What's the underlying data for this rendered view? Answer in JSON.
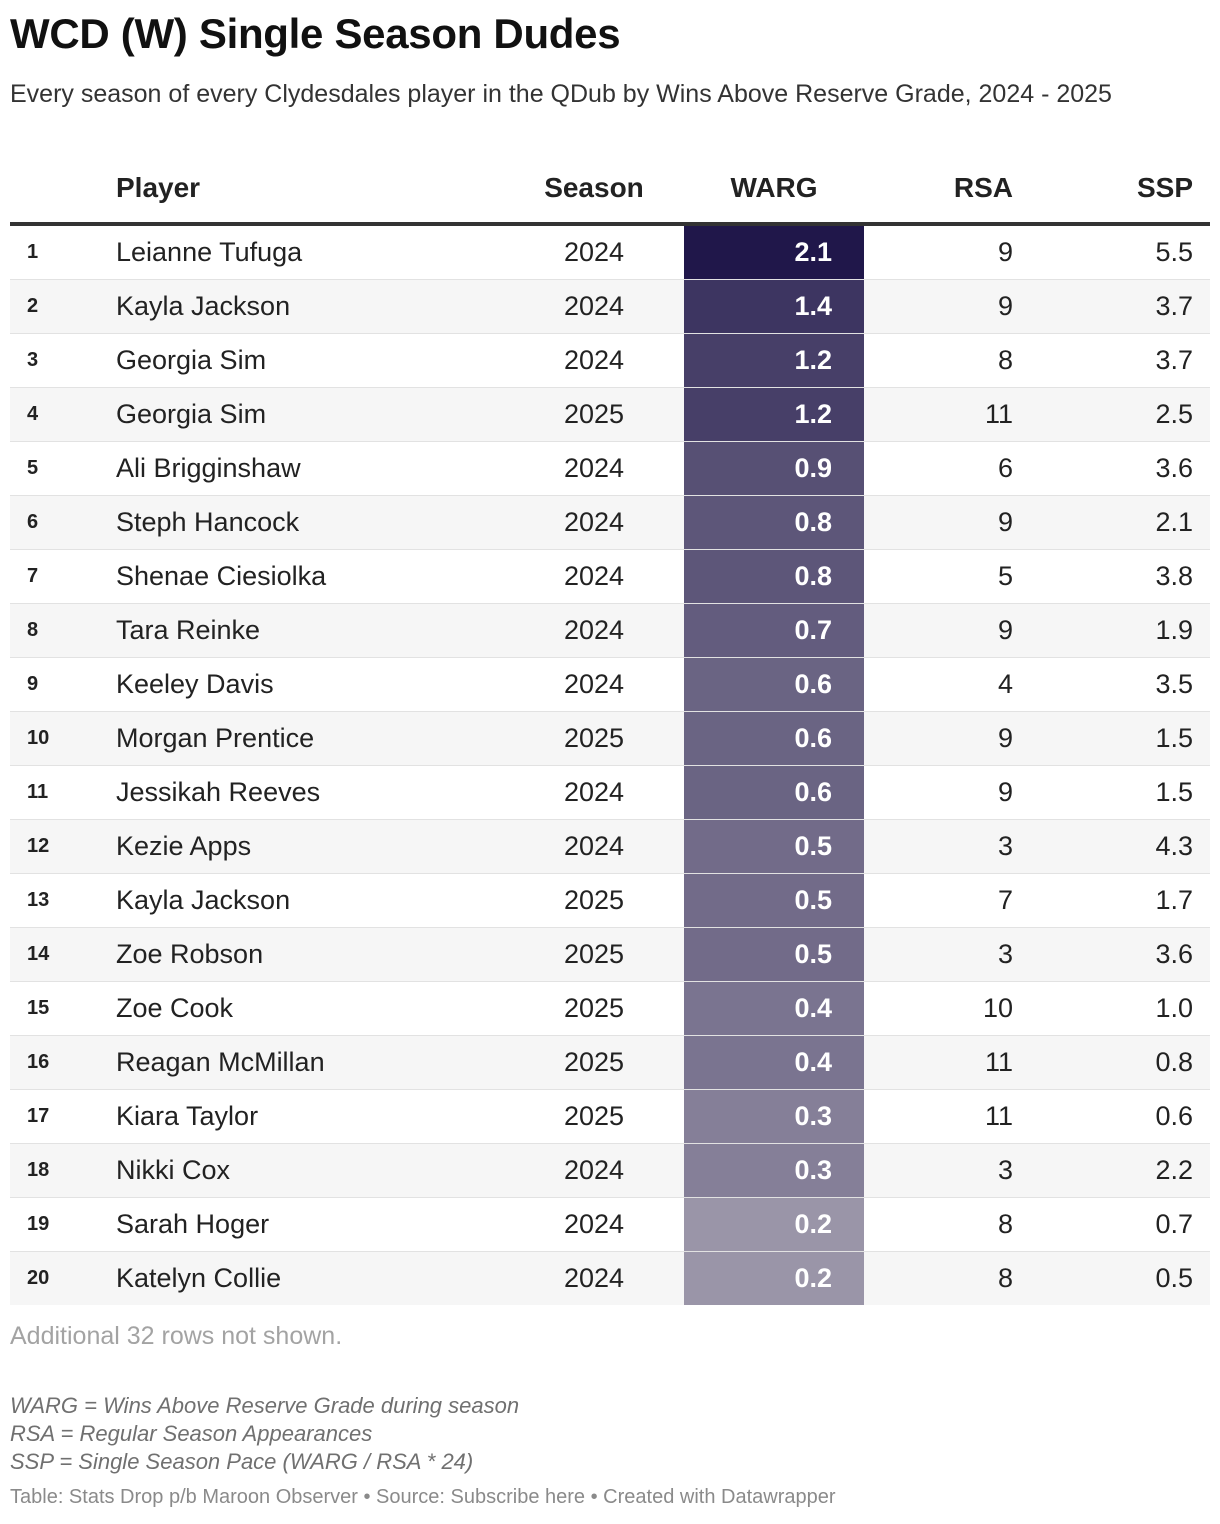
{
  "title": "WCD (W) Single Season Dudes",
  "subtitle": "Every season of every Clydesdales player in the QDub by Wins Above Reserve Grade, 2024 - 2025",
  "headers": {
    "rank": "",
    "player": "Player",
    "season": "Season",
    "warg": "WARG",
    "rsa": "RSA",
    "ssp": "SSP"
  },
  "colors": {
    "warg_max": "#20174a",
    "warg_min": "#9a95a8",
    "row_alt": "#f6f6f6",
    "header_rule": "#333333"
  },
  "chart_data": {
    "type": "table",
    "columns": [
      "",
      "Player",
      "Season",
      "WARG",
      "RSA",
      "SSP"
    ],
    "rows": [
      {
        "rank": "1",
        "player": "Leianne Tufuga",
        "season": "2024",
        "warg": "2.1",
        "rsa": "9",
        "ssp": "5.5"
      },
      {
        "rank": "2",
        "player": "Kayla Jackson",
        "season": "2024",
        "warg": "1.4",
        "rsa": "9",
        "ssp": "3.7"
      },
      {
        "rank": "3",
        "player": "Georgia Sim",
        "season": "2024",
        "warg": "1.2",
        "rsa": "8",
        "ssp": "3.7"
      },
      {
        "rank": "4",
        "player": "Georgia Sim",
        "season": "2025",
        "warg": "1.2",
        "rsa": "11",
        "ssp": "2.5"
      },
      {
        "rank": "5",
        "player": "Ali Brigginshaw",
        "season": "2024",
        "warg": "0.9",
        "rsa": "6",
        "ssp": "3.6"
      },
      {
        "rank": "6",
        "player": "Steph Hancock",
        "season": "2024",
        "warg": "0.8",
        "rsa": "9",
        "ssp": "2.1"
      },
      {
        "rank": "7",
        "player": "Shenae Ciesiolka",
        "season": "2024",
        "warg": "0.8",
        "rsa": "5",
        "ssp": "3.8"
      },
      {
        "rank": "8",
        "player": "Tara Reinke",
        "season": "2024",
        "warg": "0.7",
        "rsa": "9",
        "ssp": "1.9"
      },
      {
        "rank": "9",
        "player": "Keeley Davis",
        "season": "2024",
        "warg": "0.6",
        "rsa": "4",
        "ssp": "3.5"
      },
      {
        "rank": "10",
        "player": "Morgan Prentice",
        "season": "2025",
        "warg": "0.6",
        "rsa": "9",
        "ssp": "1.5"
      },
      {
        "rank": "11",
        "player": "Jessikah Reeves",
        "season": "2024",
        "warg": "0.6",
        "rsa": "9",
        "ssp": "1.5"
      },
      {
        "rank": "12",
        "player": "Kezie Apps",
        "season": "2024",
        "warg": "0.5",
        "rsa": "3",
        "ssp": "4.3"
      },
      {
        "rank": "13",
        "player": "Kayla Jackson",
        "season": "2025",
        "warg": "0.5",
        "rsa": "7",
        "ssp": "1.7"
      },
      {
        "rank": "14",
        "player": "Zoe Robson",
        "season": "2025",
        "warg": "0.5",
        "rsa": "3",
        "ssp": "3.6"
      },
      {
        "rank": "15",
        "player": "Zoe Cook",
        "season": "2025",
        "warg": "0.4",
        "rsa": "10",
        "ssp": "1.0"
      },
      {
        "rank": "16",
        "player": "Reagan McMillan",
        "season": "2025",
        "warg": "0.4",
        "rsa": "11",
        "ssp": "0.8"
      },
      {
        "rank": "17",
        "player": "Kiara Taylor",
        "season": "2025",
        "warg": "0.3",
        "rsa": "11",
        "ssp": "0.6"
      },
      {
        "rank": "18",
        "player": "Nikki Cox",
        "season": "2024",
        "warg": "0.3",
        "rsa": "3",
        "ssp": "2.2"
      },
      {
        "rank": "19",
        "player": "Sarah Hoger",
        "season": "2024",
        "warg": "0.2",
        "rsa": "8",
        "ssp": "0.7"
      },
      {
        "rank": "20",
        "player": "Katelyn Collie",
        "season": "2024",
        "warg": "0.2",
        "rsa": "8",
        "ssp": "0.5"
      }
    ]
  },
  "more_rows": "Additional 32 rows not shown.",
  "notes": [
    "WARG = Wins Above Reserve Grade during season",
    "RSA = Regular Season Appearances",
    "SSP = Single Season Pace (WARG / RSA * 24)"
  ],
  "footer": "Table: Stats Drop p/b Maroon Observer • Source: Subscribe here • Created with Datawrapper"
}
